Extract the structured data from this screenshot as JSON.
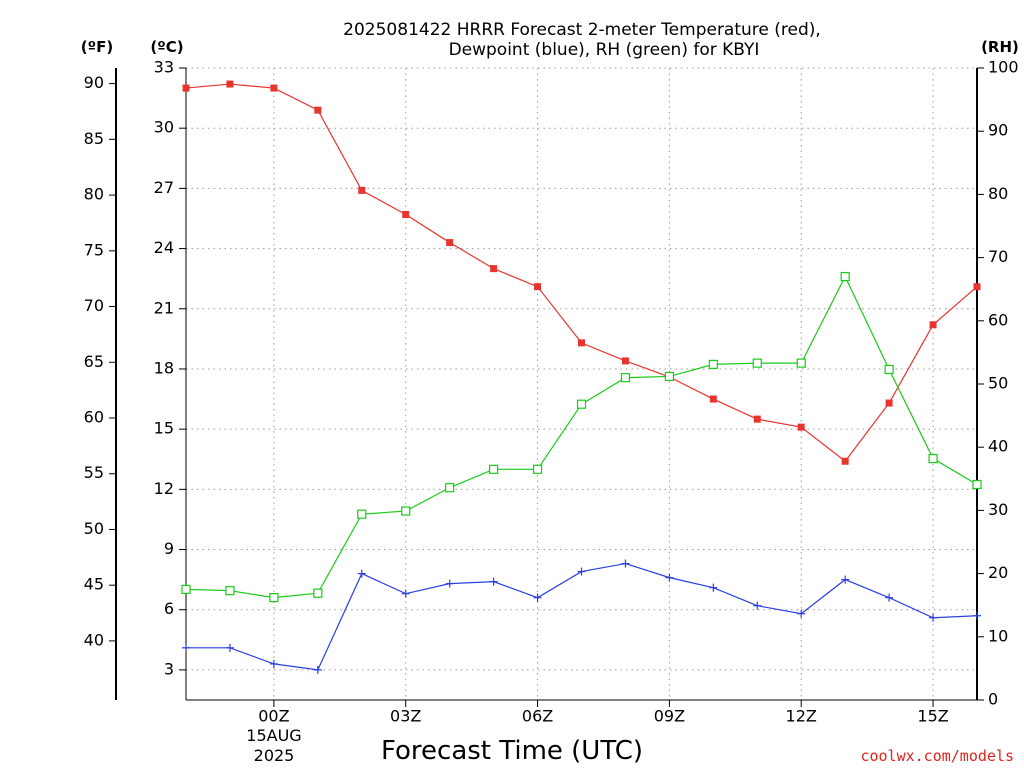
{
  "chart_data": {
    "type": "line",
    "title": "2025081422 HRRR Forecast 2-meter Temperature (red),",
    "subtitle": "Dewpoint (blue), RH (green) for KBYI",
    "xlabel": "Forecast Time (UTC)",
    "credit": "coolwx.com/models",
    "units": {
      "fahrenheit": "(ºF)",
      "celsius": "(ºC)",
      "rh": "(RH)"
    },
    "date_label": {
      "hour": "00Z",
      "day": "15AUG",
      "year": "2025"
    },
    "x_hours": [
      -2,
      -1,
      0,
      1,
      2,
      3,
      4,
      5,
      6,
      7,
      8,
      9,
      10,
      11,
      12,
      13,
      14,
      15,
      16
    ],
    "x_ticks": [
      {
        "hour": 0,
        "label": "00Z"
      },
      {
        "hour": 3,
        "label": "03Z"
      },
      {
        "hour": 6,
        "label": "06Z"
      },
      {
        "hour": 9,
        "label": "09Z"
      },
      {
        "hour": 12,
        "label": "12Z"
      },
      {
        "hour": 15,
        "label": "15Z"
      }
    ],
    "xlim": [
      -2,
      16
    ],
    "celsius_axis": {
      "ylim": [
        1.5,
        33
      ],
      "ticks": [
        3,
        6,
        9,
        12,
        15,
        18,
        21,
        24,
        27,
        30,
        33
      ]
    },
    "fahrenheit_axis": {
      "ticks": [
        40,
        45,
        50,
        55,
        60,
        65,
        70,
        75,
        80,
        85,
        90
      ]
    },
    "rh_axis": {
      "ylim": [
        0,
        100
      ],
      "ticks": [
        0,
        10,
        20,
        30,
        40,
        50,
        60,
        70,
        80,
        90,
        100
      ]
    },
    "grid": true,
    "series": [
      {
        "axis": "celsius",
        "color": "#e8342f",
        "marker": "filled-square",
        "values": [
          32.0,
          32.2,
          32.0,
          30.9,
          26.9,
          25.7,
          24.3,
          23.0,
          22.1,
          19.3,
          18.4,
          17.6,
          16.5,
          15.5,
          15.1,
          13.4,
          16.3,
          20.2,
          22.1
        ]
      },
      {
        "axis": "celsius",
        "color": "#2a3fe0",
        "marker": "plus",
        "values": [
          4.1,
          4.1,
          3.3,
          3.0,
          7.8,
          6.8,
          7.3,
          7.4,
          6.6,
          7.9,
          8.3,
          7.6,
          7.1,
          6.2,
          5.8,
          7.5,
          6.6,
          5.6,
          5.7
        ]
      },
      {
        "axis": "rh",
        "color": "#19cc19",
        "marker": "open-square",
        "values": [
          17.5,
          17.3,
          16.2,
          16.9,
          29.4,
          29.9,
          33.6,
          36.5,
          36.5,
          46.8,
          51.0,
          51.2,
          53.1,
          53.3,
          53.3,
          67.0,
          52.3,
          38.2,
          34.1
        ]
      }
    ]
  }
}
